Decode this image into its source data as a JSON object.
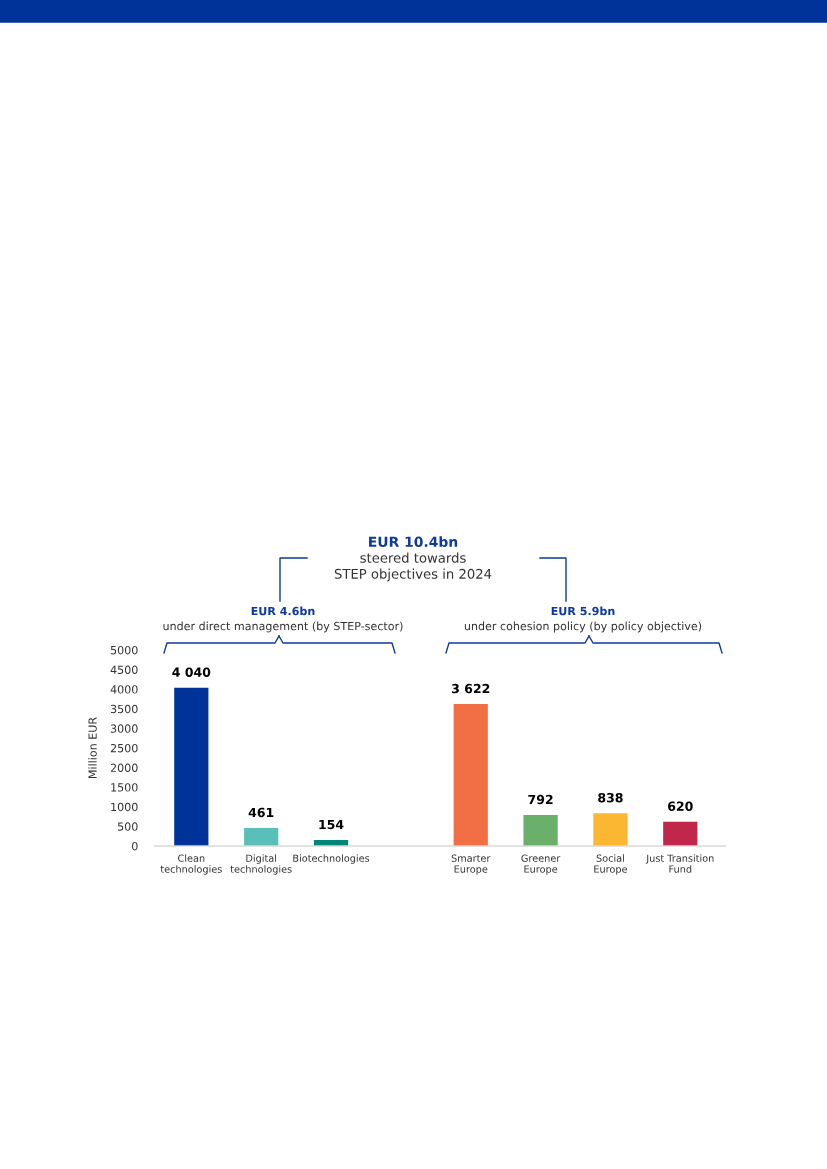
{
  "chart_data": {
    "type": "bar",
    "title": "EUR 10.4bn",
    "subtitle": "steered towards\nSTEP objectives in 2024",
    "ylabel": "Million EUR",
    "categories": [
      "Clean\ntechnologies",
      "Digital\ntechnologies",
      "Biotechnologies",
      null,
      "Smarter\nEurope",
      "Greener\nEurope",
      "Social\nEurope",
      "Just Transition\nFund"
    ],
    "values": [
      4040,
      461,
      154,
      null,
      3622,
      792,
      838,
      620
    ],
    "colors": [
      "#003399",
      "#5bbfb9",
      "#00857a",
      "#ffffff",
      "#f26e45",
      "#6aaf6a",
      "#fbb632",
      "#c0274a"
    ],
    "value_labels": [
      "4 040",
      "461",
      "154",
      null,
      "3 622",
      "792",
      "838",
      "620"
    ],
    "ylim": [
      0,
      5000
    ],
    "yticks": [
      0,
      500,
      1000,
      1500,
      2000,
      2500,
      3000,
      3500,
      4000,
      4500,
      5000
    ],
    "grid": false,
    "legend": false,
    "annotations": [
      "EUR 4.6bn\nunder direct management (by STEP-sector)",
      "EUR 5.9bn\nunder cohesion policy (by policy objective)"
    ]
  }
}
